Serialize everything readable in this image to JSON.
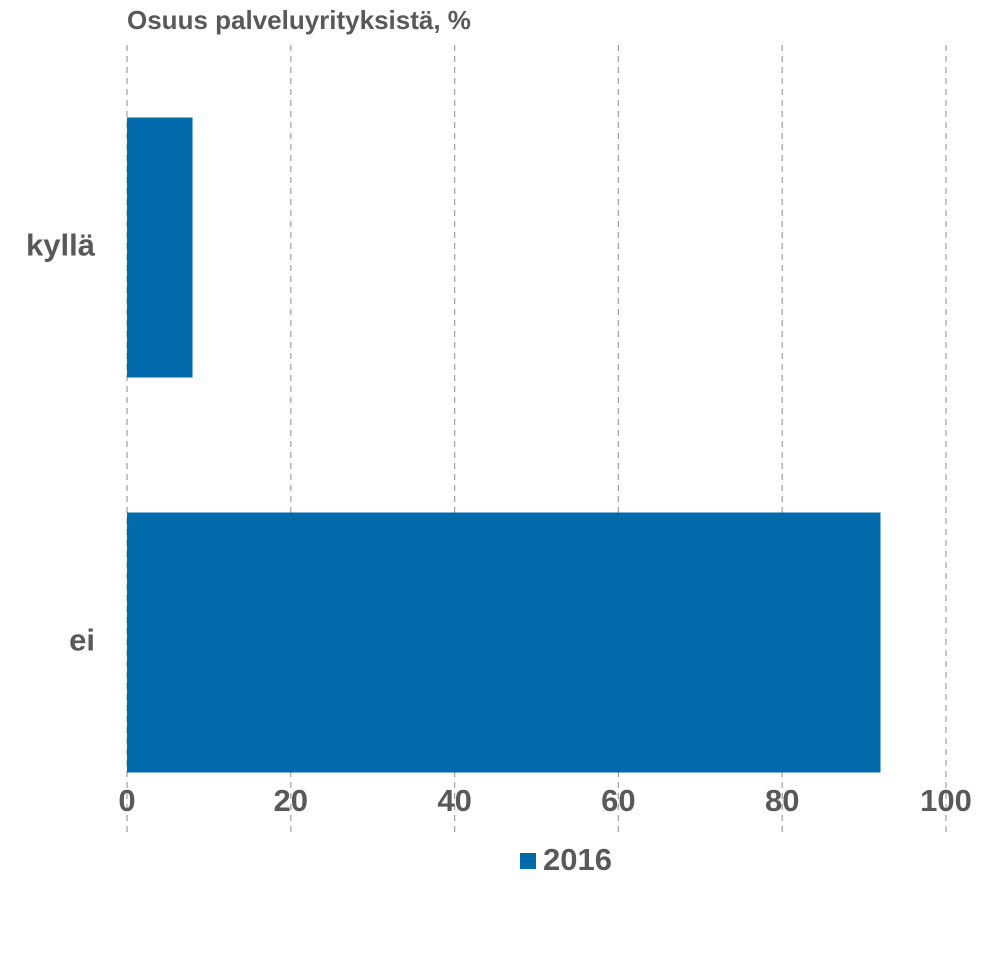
{
  "chart_data": {
    "type": "bar",
    "orientation": "horizontal",
    "title": "Osuus palveluyrityksistä, %",
    "categories": [
      "kyllä",
      "ei"
    ],
    "series": [
      {
        "name": "2016",
        "color": "#006aab",
        "values": [
          8,
          92
        ]
      }
    ],
    "xlim": [
      0,
      100
    ],
    "xticks": [
      0,
      20,
      40,
      60,
      80,
      100
    ],
    "grid": true
  }
}
